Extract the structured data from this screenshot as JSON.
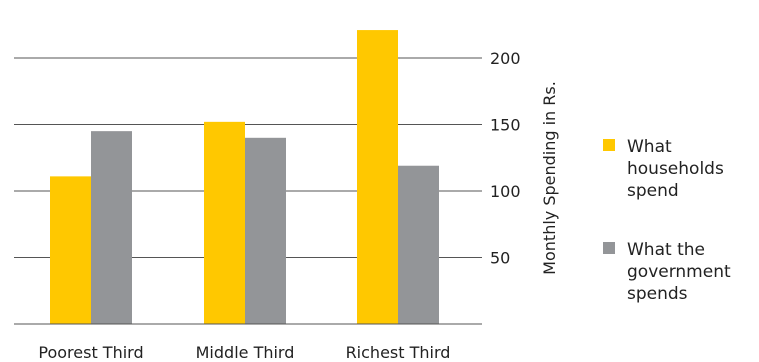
{
  "chart_data": {
    "type": "bar",
    "categories": [
      "Poorest Third",
      "Middle Third",
      "Richest Third"
    ],
    "series": [
      {
        "name": "What households spend",
        "legend_lines": [
          "What",
          "households",
          "spend"
        ],
        "values": [
          111,
          152,
          221
        ],
        "color": "#ffc800"
      },
      {
        "name": "What the government spends",
        "legend_lines": [
          "What the",
          "government",
          "spends"
        ],
        "values": [
          145,
          140,
          119
        ],
        "color": "#939598"
      }
    ],
    "xlabel": "",
    "ylabel": "Monthly Spending in Rs.",
    "ylim": [
      0,
      225
    ],
    "yticks": [
      50,
      100,
      150,
      200
    ],
    "grid": true,
    "axis_side": "right",
    "legend_position": "right"
  }
}
